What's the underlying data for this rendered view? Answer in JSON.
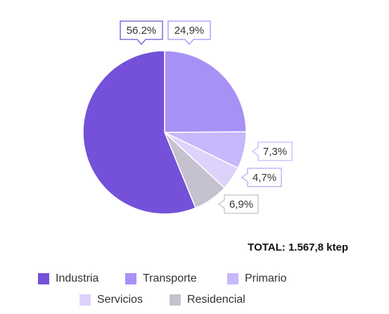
{
  "chart_data": {
    "type": "pie",
    "title": "",
    "slices": [
      {
        "name": "Industria",
        "value": 56.2,
        "label": "56.2%",
        "color": "#7451d8"
      },
      {
        "name": "Transporte",
        "value": 24.9,
        "label": "24,9%",
        "color": "#a891f4"
      },
      {
        "name": "Primario",
        "value": 7.3,
        "label": "7,3%",
        "color": "#c7b7fb"
      },
      {
        "name": "Servicios",
        "value": 4.7,
        "label": "4,7%",
        "color": "#dcd2fc"
      },
      {
        "name": "Residencial",
        "value": 6.9,
        "label": "6,9%",
        "color": "#c5c1cf"
      }
    ],
    "slice_order_clockwise_from_top": [
      "Transporte",
      "Primario",
      "Servicios",
      "Residencial",
      "Industria"
    ],
    "total_label": "TOTAL: 1.567,8 ktep",
    "legend_position": "bottom"
  }
}
